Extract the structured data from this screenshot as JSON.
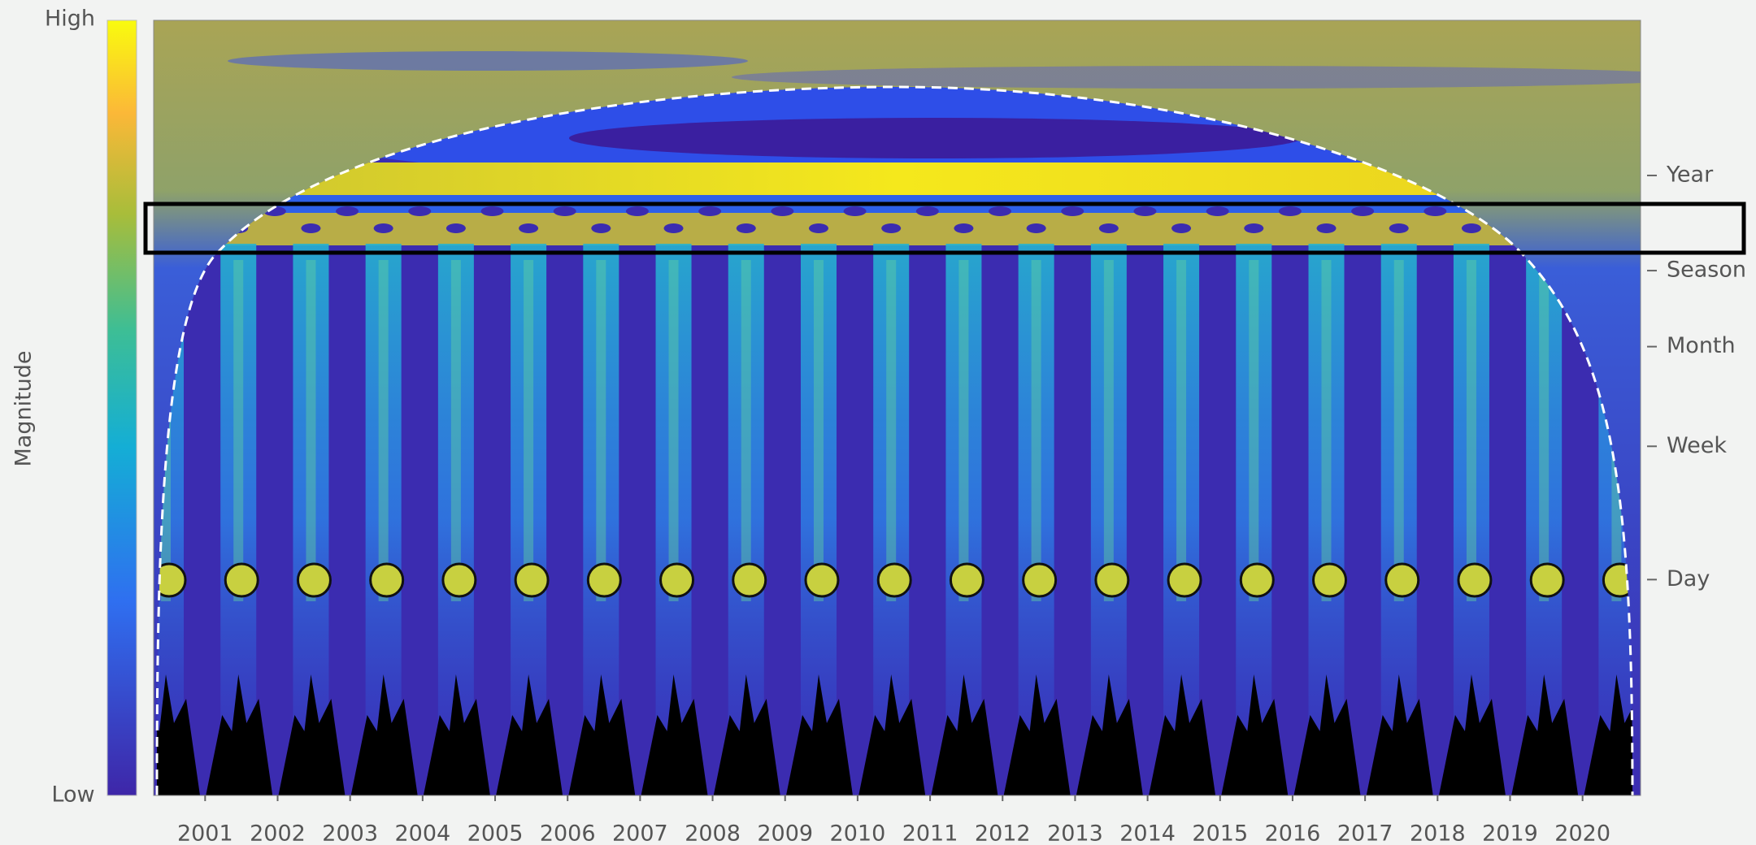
{
  "chart_data": {
    "type": "heatmap",
    "colorbar": {
      "label": "Magnitude",
      "high": "High",
      "low": "Low"
    },
    "xlim": [
      2000.29,
      2020.8
    ],
    "xticks": [
      2001,
      2002,
      2003,
      2004,
      2005,
      2006,
      2007,
      2008,
      2009,
      2010,
      2011,
      2012,
      2013,
      2014,
      2015,
      2016,
      2017,
      2018,
      2019,
      2020
    ],
    "ylim": [
      0.0428,
      3516
    ],
    "yscale": "log",
    "yticks": [
      {
        "value": 1,
        "label": "Day"
      },
      {
        "value": 7,
        "label": "Week"
      },
      {
        "value": 30,
        "label": "Month"
      },
      {
        "value": 91,
        "label": "Season"
      },
      {
        "value": 365,
        "label": "Year"
      }
    ]
  }
}
